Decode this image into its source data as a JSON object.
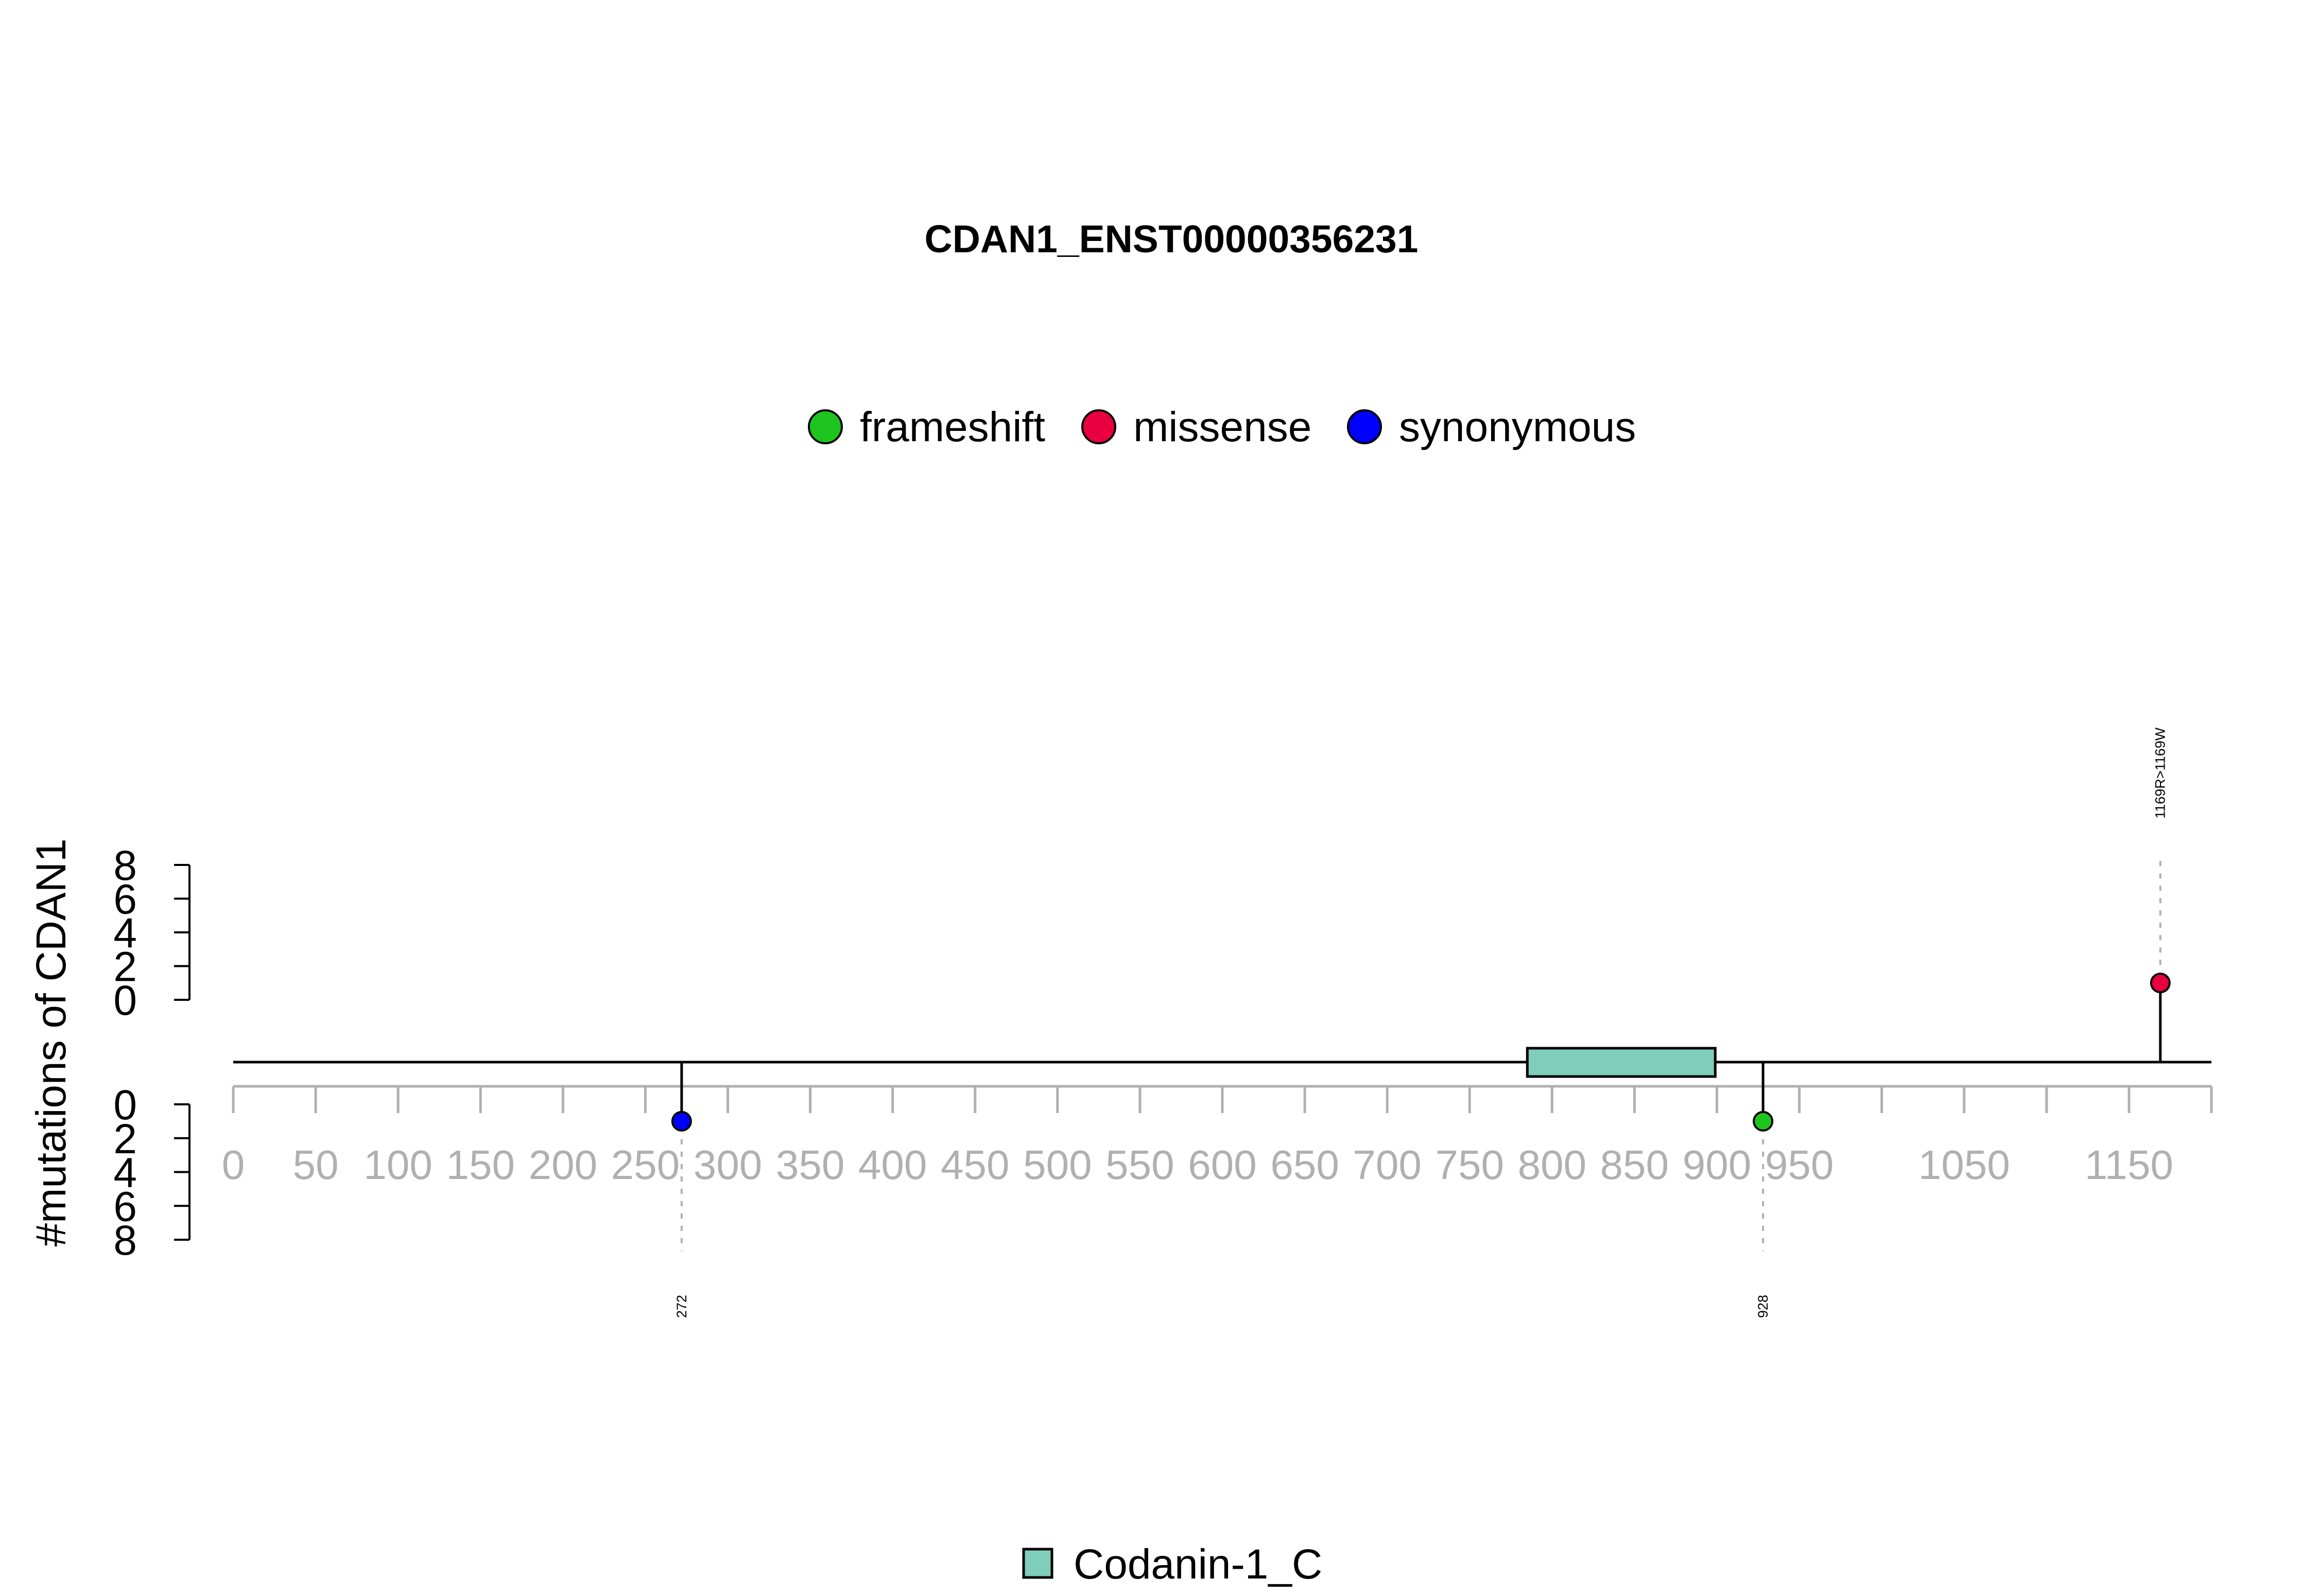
{
  "chart_data": {
    "type": "lollipop",
    "title": "CDAN1_ENST00000356231",
    "ylabel": "#mutations of CDAN1",
    "legend": {
      "placement": "top-center",
      "entries": [
        {
          "label": "frameshift",
          "color": "#1ec51e"
        },
        {
          "label": "missense",
          "color": "#e8003f"
        },
        {
          "label": "synonymous",
          "color": "#0000ff"
        }
      ]
    },
    "xlim": [
      0,
      1200
    ],
    "x_ticks": [
      0,
      50,
      100,
      150,
      200,
      250,
      300,
      350,
      400,
      450,
      500,
      550,
      600,
      650,
      700,
      750,
      800,
      850,
      900,
      950,
      1000,
      1050,
      1100,
      1150,
      1200
    ],
    "x_tick_labels": [
      0,
      50,
      100,
      150,
      200,
      250,
      300,
      350,
      400,
      450,
      500,
      550,
      600,
      650,
      700,
      750,
      800,
      850,
      900,
      950,
      1050,
      1150
    ],
    "y_ticks_upper": [
      0,
      2,
      4,
      6,
      8
    ],
    "y_ticks_lower": [
      0,
      2,
      4,
      6,
      8
    ],
    "domains": [
      {
        "name": "Codanin-1_C",
        "start": 785,
        "end": 899,
        "color": "#7fcdbb"
      }
    ],
    "mutations": [
      {
        "position": 272,
        "count": 1,
        "type": "synonymous",
        "label": "272",
        "side": "lower"
      },
      {
        "position": 928,
        "count": 1,
        "type": "frameshift",
        "label": "928",
        "side": "lower"
      },
      {
        "position": 1169,
        "count": 1,
        "type": "missense",
        "label": "1169R>1169W",
        "side": "upper"
      }
    ]
  }
}
